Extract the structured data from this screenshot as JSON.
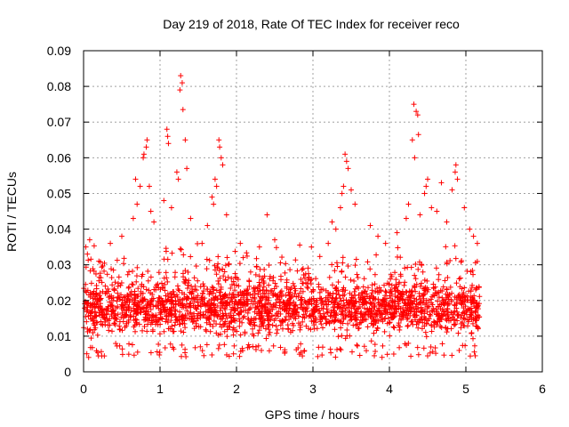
{
  "chart_data": {
    "type": "scatter",
    "title": "Day 219 of 2018, Rate Of TEC Index for receiver reco",
    "xlabel": "GPS time / hours",
    "ylabel": "ROTI / TECUs",
    "xlim": [
      0,
      6
    ],
    "ylim": [
      0,
      0.09
    ],
    "xticks": [
      "0",
      "1",
      "2",
      "3",
      "4",
      "5",
      "6"
    ],
    "yticks": [
      "0",
      "0.01",
      "0.02",
      "0.03",
      "0.04",
      "0.05",
      "0.06",
      "0.07",
      "0.08",
      "0.09"
    ],
    "grid": true,
    "marker": "+",
    "series": [
      {
        "name": "ROTI",
        "color": "#ff0000",
        "x_range": [
          0,
          5.18
        ],
        "typical_band": [
          0.008,
          0.025
        ],
        "points": [
          [
            1.27,
            0.083
          ],
          [
            1.29,
            0.081
          ],
          [
            1.26,
            0.079
          ],
          [
            1.3,
            0.0735
          ],
          [
            4.32,
            0.075
          ],
          [
            4.35,
            0.073
          ],
          [
            4.37,
            0.072
          ],
          [
            4.38,
            0.0665
          ],
          [
            1.09,
            0.068
          ],
          [
            1.1,
            0.066
          ],
          [
            1.11,
            0.064
          ],
          [
            1.33,
            0.065
          ],
          [
            0.83,
            0.065
          ],
          [
            0.82,
            0.063
          ],
          [
            0.79,
            0.061
          ],
          [
            0.78,
            0.06
          ],
          [
            1.77,
            0.065
          ],
          [
            1.78,
            0.063
          ],
          [
            1.8,
            0.06
          ],
          [
            1.82,
            0.058
          ],
          [
            3.42,
            0.061
          ],
          [
            3.44,
            0.059
          ],
          [
            3.46,
            0.057
          ],
          [
            4.3,
            0.065
          ],
          [
            4.33,
            0.06
          ],
          [
            4.87,
            0.058
          ],
          [
            4.86,
            0.056
          ],
          [
            4.89,
            0.054
          ],
          [
            0.68,
            0.054
          ],
          [
            0.74,
            0.052
          ],
          [
            0.86,
            0.052
          ],
          [
            1.22,
            0.056
          ],
          [
            1.24,
            0.054
          ],
          [
            1.35,
            0.057
          ],
          [
            1.72,
            0.054
          ],
          [
            1.74,
            0.052
          ],
          [
            3.4,
            0.052
          ],
          [
            3.38,
            0.05
          ],
          [
            3.5,
            0.051
          ],
          [
            4.5,
            0.054
          ],
          [
            4.48,
            0.052
          ],
          [
            4.46,
            0.05
          ],
          [
            4.68,
            0.053
          ],
          [
            4.82,
            0.051
          ],
          [
            0.7,
            0.047
          ],
          [
            0.88,
            0.045
          ],
          [
            1.05,
            0.048
          ],
          [
            1.15,
            0.046
          ],
          [
            1.68,
            0.049
          ],
          [
            1.7,
            0.047
          ],
          [
            1.87,
            0.044
          ],
          [
            2.4,
            0.044
          ],
          [
            3.36,
            0.046
          ],
          [
            3.55,
            0.047
          ],
          [
            4.25,
            0.047
          ],
          [
            4.55,
            0.046
          ],
          [
            4.62,
            0.045
          ],
          [
            4.98,
            0.046
          ],
          [
            0.65,
            0.043
          ],
          [
            0.92,
            0.042
          ],
          [
            1.4,
            0.043
          ],
          [
            1.62,
            0.041
          ],
          [
            3.25,
            0.042
          ],
          [
            3.3,
            0.04
          ],
          [
            3.75,
            0.041
          ],
          [
            4.22,
            0.043
          ],
          [
            4.4,
            0.044
          ],
          [
            4.75,
            0.042
          ],
          [
            5.05,
            0.04
          ],
          [
            0.03,
            0.035
          ],
          [
            0.05,
            0.033
          ],
          [
            0.08,
            0.037
          ],
          [
            0.2,
            0.031
          ],
          [
            0.35,
            0.036
          ],
          [
            0.5,
            0.038
          ],
          [
            1.55,
            0.036
          ],
          [
            2.05,
            0.036
          ],
          [
            2.3,
            0.035
          ],
          [
            2.5,
            0.037
          ],
          [
            2.98,
            0.035
          ],
          [
            3.2,
            0.036
          ],
          [
            3.85,
            0.038
          ],
          [
            3.95,
            0.036
          ],
          [
            4.1,
            0.039
          ],
          [
            5.1,
            0.038
          ],
          [
            5.15,
            0.036
          ]
        ]
      }
    ]
  }
}
